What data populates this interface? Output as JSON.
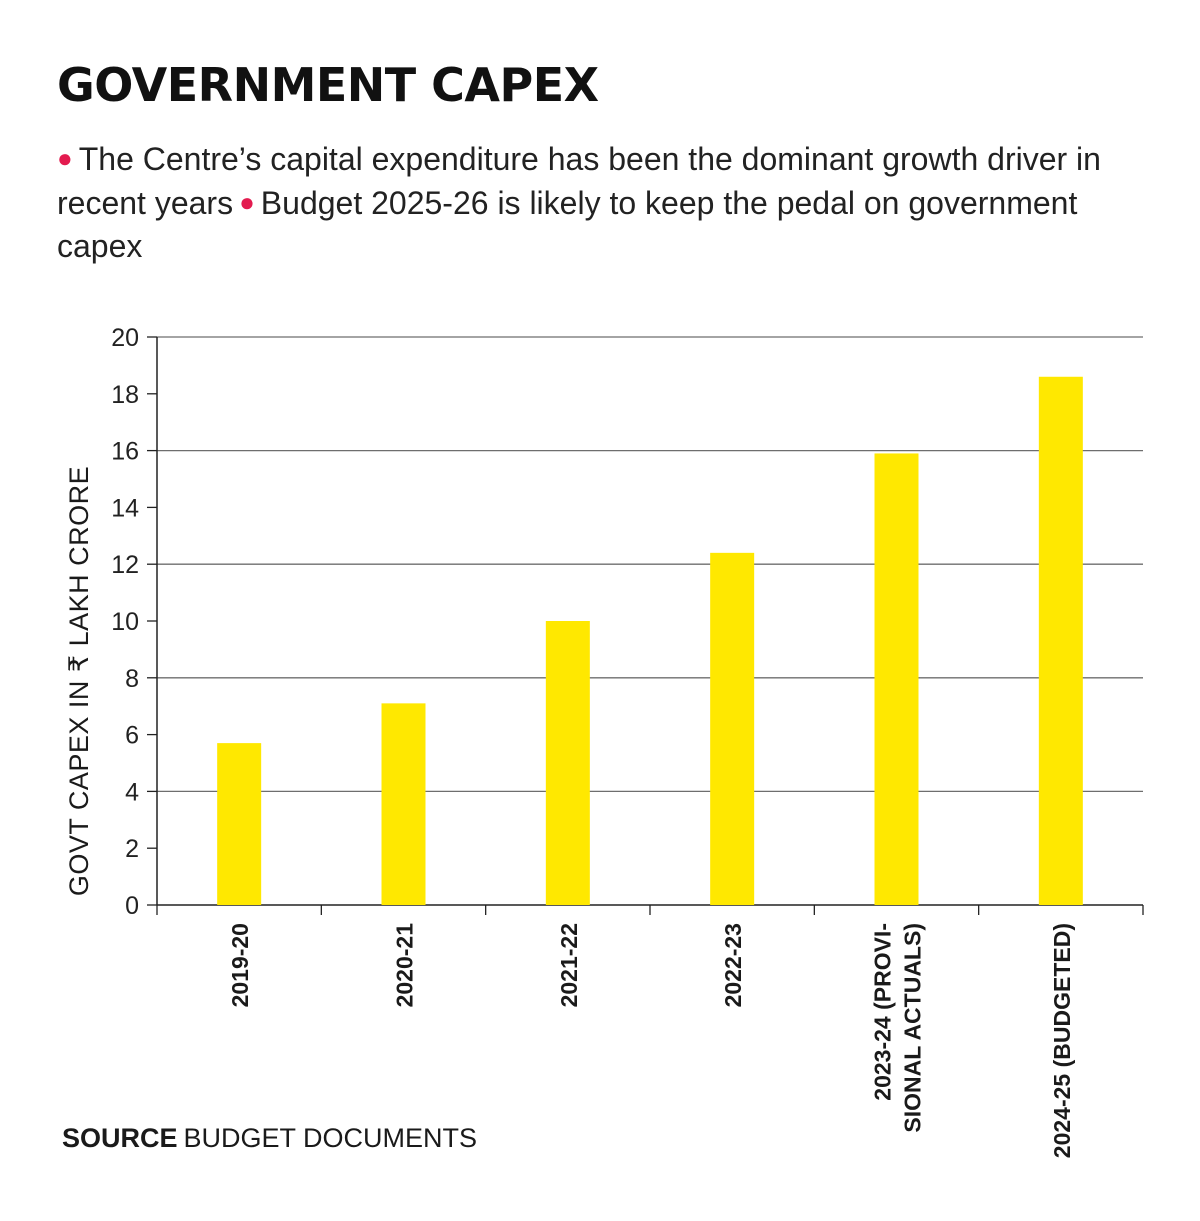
{
  "title": "GOVERNMENT CAPEX",
  "subtitle": {
    "point1": "The Centre’s capital expenditure has been the dominant growth driver in recent years",
    "point2": "Budget 2025-26 is likely to keep the pedal on government capex"
  },
  "source": {
    "label": "SOURCE",
    "text": "BUDGET DOCUMENTS"
  },
  "colors": {
    "bar": "#FFE800",
    "bullet": "#E31B4F",
    "grid": "#6e6e6e"
  },
  "chart_data": {
    "type": "bar",
    "ylabel": "GOVT CAPEX IN ₹ LAKH CRORE",
    "xlabel": "",
    "ylim": [
      0,
      20
    ],
    "yticks": [
      0,
      2,
      4,
      6,
      8,
      10,
      12,
      14,
      16,
      18,
      20
    ],
    "grid": true,
    "categories": [
      [
        "2019-20"
      ],
      [
        "2020-21"
      ],
      [
        "2021-22"
      ],
      [
        "2022-23"
      ],
      [
        "2023-24 (PROVI-",
        "SIONAL ACTUALS)"
      ],
      [
        "2024-25 (BUDGETED)"
      ]
    ],
    "values": [
      5.7,
      7.1,
      10.0,
      12.4,
      15.9,
      18.6
    ]
  }
}
